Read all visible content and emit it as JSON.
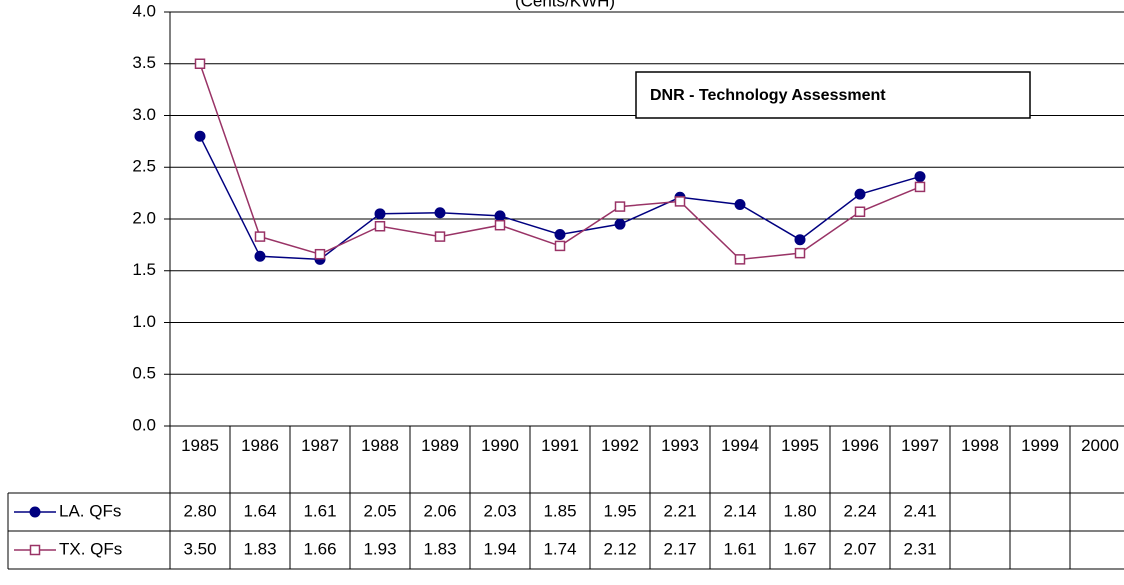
{
  "chart_data": {
    "type": "line",
    "title": "(Cents/KWH)",
    "annotation": "DNR - Technology Assessment",
    "categories": [
      "1985",
      "1986",
      "1987",
      "1988",
      "1989",
      "1990",
      "1991",
      "1992",
      "1993",
      "1994",
      "1995",
      "1996",
      "1997",
      "1998",
      "1999",
      "2000"
    ],
    "series": [
      {
        "name": "LA. QFs",
        "color": "#000080",
        "marker": "circle",
        "values": [
          2.8,
          1.64,
          1.61,
          2.05,
          2.06,
          2.03,
          1.85,
          1.95,
          2.21,
          2.14,
          1.8,
          2.24,
          2.41,
          null,
          null,
          null
        ],
        "value_labels": [
          "2.80",
          "1.64",
          "1.61",
          "2.05",
          "2.06",
          "2.03",
          "1.85",
          "1.95",
          "2.21",
          "2.14",
          "1.80",
          "2.24",
          "2.41",
          null,
          null,
          null
        ]
      },
      {
        "name": "TX. QFs",
        "color": "#993366",
        "marker": "square",
        "values": [
          3.5,
          1.83,
          1.66,
          1.93,
          1.83,
          1.94,
          1.74,
          2.12,
          2.17,
          1.61,
          1.67,
          2.07,
          2.31,
          null,
          null,
          null
        ],
        "value_labels": [
          "3.50",
          "1.83",
          "1.66",
          "1.93",
          "1.83",
          "1.94",
          "1.74",
          "2.12",
          "2.17",
          "1.61",
          "1.67",
          "2.07",
          "2.31",
          null,
          null,
          null
        ]
      }
    ],
    "ylim": [
      0,
      4
    ],
    "yticks": [
      {
        "value": 0,
        "label": "0.0"
      },
      {
        "value": 0.5,
        "label": "0.5"
      },
      {
        "value": 1,
        "label": "1.0"
      },
      {
        "value": 1.5,
        "label": "1.5"
      },
      {
        "value": 2,
        "label": "2.0"
      },
      {
        "value": 2.5,
        "label": "2.5"
      },
      {
        "value": 3,
        "label": "3.0"
      },
      {
        "value": 3.5,
        "label": "3.5"
      },
      {
        "value": 4,
        "label": "4.0"
      }
    ],
    "grid": true
  }
}
